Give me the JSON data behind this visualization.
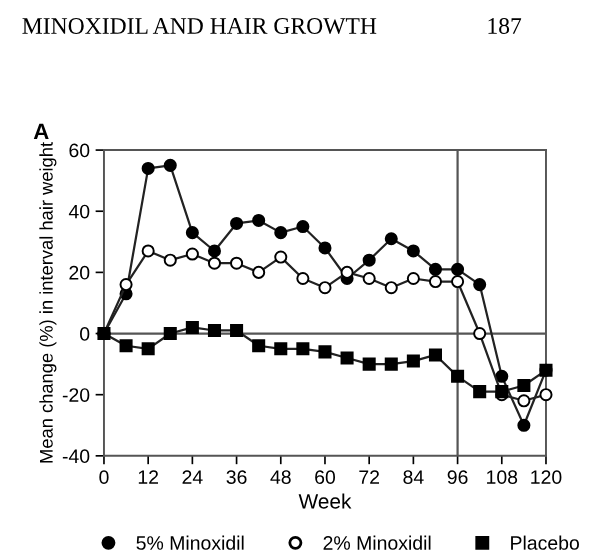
{
  "chart_data": {
    "type": "line",
    "title": "A",
    "annotations": [
      "MINOXIDIL AND HAIR GROWTH",
      "187"
    ],
    "xlabel": "Week",
    "ylabel": "Mean change (%) in interval hair weight",
    "x": [
      0,
      6,
      12,
      18,
      24,
      30,
      36,
      42,
      48,
      54,
      60,
      66,
      72,
      78,
      84,
      90,
      96,
      102,
      108,
      114,
      120
    ],
    "series": [
      {
        "name": "5% Minoxidil",
        "color": "#000000",
        "marker": "circle",
        "values": [
          0,
          13,
          54,
          55,
          33,
          27,
          36,
          37,
          33,
          35,
          28,
          18,
          24,
          31,
          27,
          21,
          21,
          16,
          -14,
          -30,
          -12
        ]
      },
      {
        "name": "2% Minoxidil",
        "color": "#ffffff",
        "marker": "circle",
        "values": [
          0,
          16,
          27,
          24,
          26,
          23,
          23,
          20,
          25,
          18,
          15,
          20,
          18,
          15,
          18,
          17,
          17,
          0,
          -20,
          -22,
          -20
        ]
      },
      {
        "name": "Placebo",
        "color": "#000000",
        "marker": "square",
        "values": [
          0,
          -4,
          -5,
          0,
          2,
          1,
          1,
          -4,
          -5,
          -5,
          -6,
          -8,
          -10,
          -10,
          -9,
          -7,
          -14,
          -19,
          -19,
          -17,
          -12
        ]
      }
    ],
    "xlim": [
      0,
      120
    ],
    "xticks": [
      0,
      12,
      24,
      36,
      48,
      60,
      72,
      84,
      96,
      108,
      120
    ],
    "ylim": [
      -40,
      60
    ],
    "yticks": [
      -40,
      -20,
      0,
      20,
      40,
      60
    ],
    "ref_lines": [
      {
        "axis": "x",
        "value": 96,
        "color": "#555555"
      },
      {
        "axis": "y",
        "value": 0,
        "color": "#555555"
      }
    ],
    "grid": false,
    "legend": "bottom",
    "line_style": "solid"
  }
}
